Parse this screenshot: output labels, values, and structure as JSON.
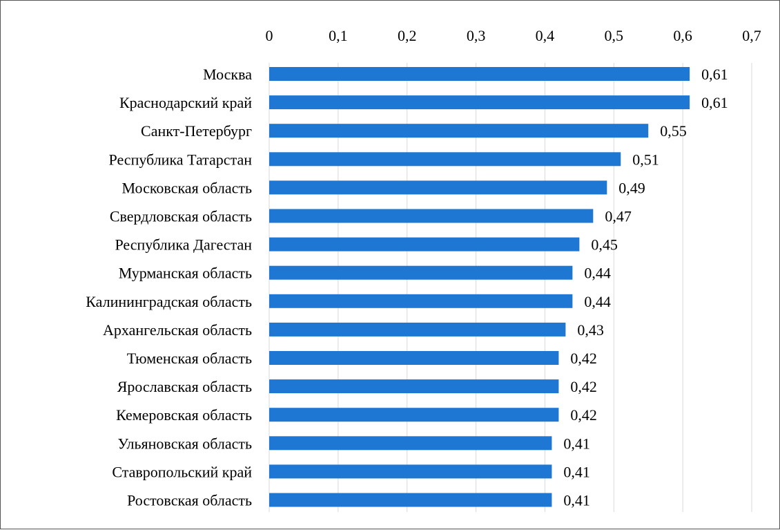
{
  "chart_data": {
    "type": "bar",
    "orientation": "horizontal",
    "title": "",
    "xlabel": "",
    "ylabel": "",
    "categories": [
      "Москва",
      "Краснодарский край",
      "Санкт-Петербург",
      "Республика Татарстан",
      "Московская область",
      "Свердловская область",
      "Республика Дагестан",
      "Мурманская область",
      "Калининградская область",
      "Архангельская область",
      "Тюменская область",
      "Ярославская область",
      "Кемеровская область",
      "Ульяновская область",
      "Ставропольский край",
      "Ростовская область"
    ],
    "values": [
      0.61,
      0.61,
      0.55,
      0.51,
      0.49,
      0.47,
      0.45,
      0.44,
      0.44,
      0.43,
      0.42,
      0.42,
      0.42,
      0.41,
      0.41,
      0.41
    ],
    "data_labels": [
      "0,61",
      "0,61",
      "0,55",
      "0,51",
      "0,49",
      "0,47",
      "0,45",
      "0,44",
      "0,44",
      "0,43",
      "0,42",
      "0,42",
      "0,42",
      "0,41",
      "0,41",
      "0,41"
    ],
    "xlim": [
      0,
      0.7
    ],
    "xticks": [
      0,
      0.1,
      0.2,
      0.3,
      0.4,
      0.5,
      0.6,
      0.7
    ],
    "xtick_labels": [
      "0",
      "0,1",
      "0,2",
      "0,3",
      "0,4",
      "0,5",
      "0,6",
      "0,7"
    ],
    "x_axis_position": "top",
    "grid": true,
    "legend": "none",
    "bar_color": "#1f77d4",
    "grid_color": "#d9d9d9"
  }
}
